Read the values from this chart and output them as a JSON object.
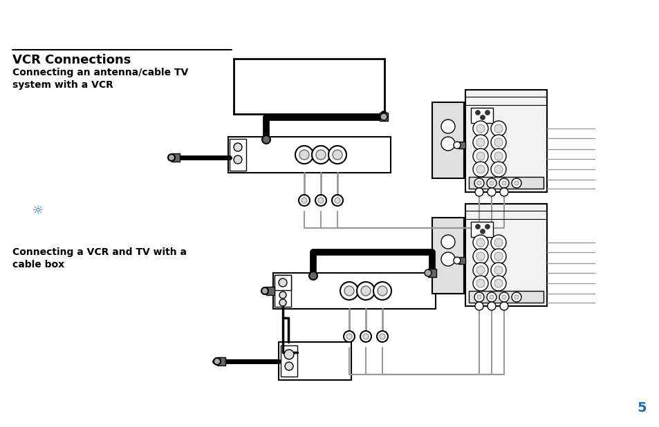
{
  "bg_color": "#ffffff",
  "title": "VCR Connections",
  "subtitle1": "Connecting an antenna/cable TV\nsystem with a VCR",
  "subtitle2": "Connecting a VCR and TV with a\ncable box",
  "page_number": "5",
  "title_fontsize": 13,
  "subtitle_fontsize": 10,
  "page_num_color": "#1e6eb5",
  "text_color": "#000000",
  "gray": "#aaaaaa",
  "darkgray": "#666666",
  "black": "#000000",
  "white": "#ffffff",
  "lightgray": "#dddddd",
  "medgray": "#999999"
}
